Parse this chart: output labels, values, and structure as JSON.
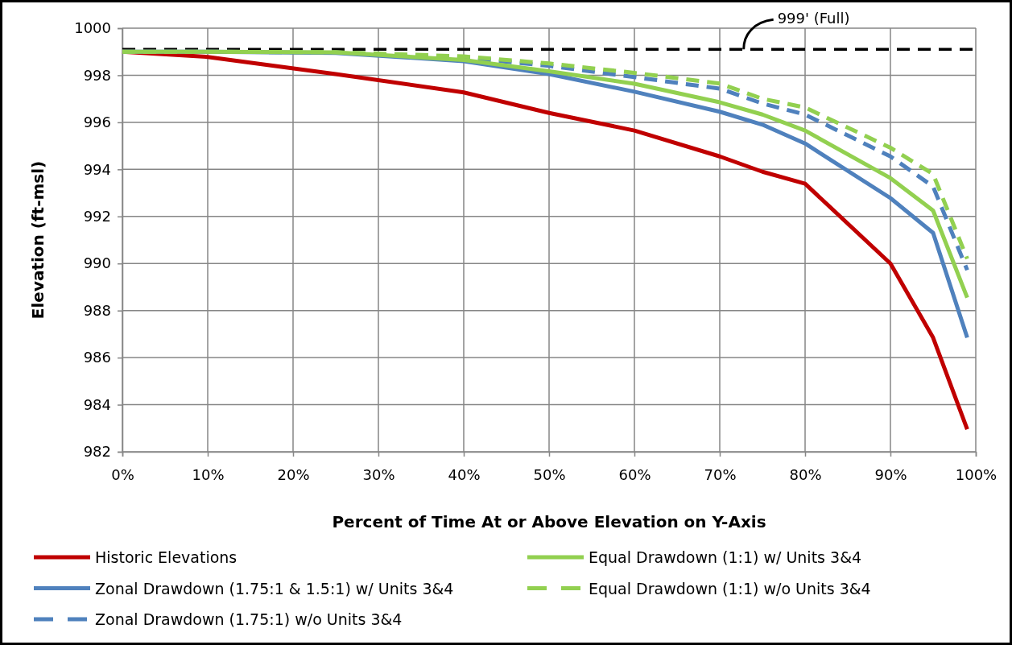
{
  "chart_data": {
    "type": "line",
    "xlabel": "Percent of Time At or Above Elevation on Y-Axis",
    "ylabel": "Elevation (ft-msl)",
    "x": [
      0,
      10,
      25,
      40,
      50,
      60,
      70,
      75,
      80,
      90,
      95,
      99
    ],
    "series": [
      {
        "name": "Historic Elevations",
        "color": "#c00000",
        "line_style": "solid",
        "values": [
          999.0,
          998.78,
          998.05,
          997.27,
          996.4,
          995.65,
          994.55,
          993.9,
          993.39,
          990.0,
          986.85,
          982.95
        ]
      },
      {
        "name": "Zonal Drawdown (1.75:1 & 1.5:1) w/ Units 3&4",
        "color": "#4f81bd",
        "line_style": "solid",
        "values": [
          999.0,
          999.0,
          998.95,
          998.6,
          998.05,
          997.3,
          996.45,
          995.9,
          995.1,
          992.78,
          991.3,
          986.85
        ]
      },
      {
        "name": "Zonal Drawdown (1.75:1) w/o Units 3&4",
        "color": "#4f81bd",
        "line_style": "dashed",
        "values": [
          999.0,
          999.0,
          998.97,
          998.75,
          998.4,
          997.92,
          997.43,
          996.8,
          996.33,
          994.55,
          993.27,
          989.72
        ]
      },
      {
        "name": "Equal Drawdown (1:1) w/ Units 3&4",
        "color": "#92d050",
        "line_style": "solid",
        "values": [
          999.0,
          999.0,
          998.97,
          998.65,
          998.17,
          997.64,
          996.85,
          996.33,
          995.65,
          993.63,
          992.25,
          988.55
        ]
      },
      {
        "name": "Equal Drawdown (1:1) w/o Units 3&4",
        "color": "#92d050",
        "line_style": "dashed",
        "values": [
          999.0,
          999.0,
          998.98,
          998.8,
          998.5,
          998.1,
          997.65,
          997.0,
          996.63,
          994.92,
          993.8,
          990.2
        ]
      }
    ],
    "xlim": [
      0,
      100
    ],
    "xticks": [
      {
        "value": 0,
        "label": "0%"
      },
      {
        "value": 10,
        "label": "10%"
      },
      {
        "value": 20,
        "label": "20%"
      },
      {
        "value": 30,
        "label": "30%"
      },
      {
        "value": 40,
        "label": "40%"
      },
      {
        "value": 50,
        "label": "50%"
      },
      {
        "value": 60,
        "label": "60%"
      },
      {
        "value": 70,
        "label": "70%"
      },
      {
        "value": 80,
        "label": "80%"
      },
      {
        "value": 90,
        "label": "90%"
      },
      {
        "value": 100,
        "label": "100%"
      }
    ],
    "ylim": [
      982,
      1000
    ],
    "yticks": [
      982,
      984,
      986,
      988,
      990,
      992,
      994,
      996,
      998,
      1000
    ],
    "ref_lines": [
      {
        "axis": "y",
        "value": 999.1,
        "label": "999' (Full)",
        "color": "#000000",
        "line_style": "dashed"
      }
    ],
    "grid": true,
    "legend": "bottom",
    "marker": "none"
  }
}
